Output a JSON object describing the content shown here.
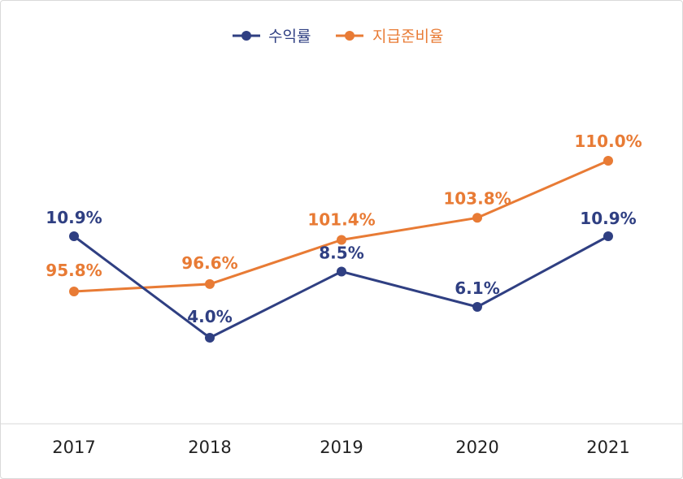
{
  "chart_data": {
    "type": "line",
    "categories": [
      "2017",
      "2018",
      "2019",
      "2020",
      "2021"
    ],
    "series": [
      {
        "name": "수익률",
        "color": "#2f3f82",
        "values": [
          10.9,
          4.0,
          8.5,
          6.1,
          10.9
        ],
        "labels": [
          "10.9%",
          "4.0%",
          "8.5%",
          "6.1%",
          "10.9%"
        ]
      },
      {
        "name": "지급준비율",
        "color": "#e87b35",
        "values": [
          95.8,
          96.6,
          101.4,
          103.8,
          110.0
        ],
        "labels": [
          "95.8%",
          "96.6%",
          "101.4%",
          "103.8%",
          "110.0%"
        ]
      }
    ],
    "legend_position": "top-center",
    "grid": false,
    "note": ""
  }
}
